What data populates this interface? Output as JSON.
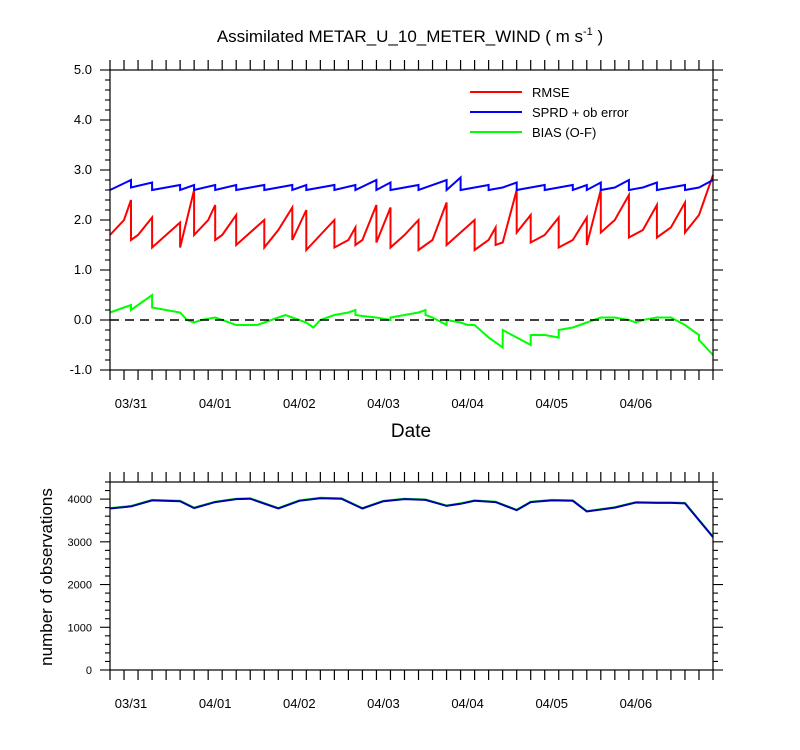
{
  "chart_data": [
    {
      "type": "line",
      "title": "Assimilated METAR_U_10_METER_WIND ( m s",
      "title_unit_superscript": "-1",
      "title_close": " )",
      "xlabel": "Date",
      "ylabel": "",
      "ylim": [
        -1.0,
        5.0
      ],
      "yticks": [
        "-1.0",
        "0.0",
        "1.0",
        "2.0",
        "3.0",
        "4.0",
        "5.0"
      ],
      "xlim": [
        0,
        43
      ],
      "xtick_labels": [
        {
          "x": 1.5,
          "label": "03/31"
        },
        {
          "x": 7.5,
          "label": "04/01"
        },
        {
          "x": 13.5,
          "label": "04/02"
        },
        {
          "x": 19.5,
          "label": "04/03"
        },
        {
          "x": 25.5,
          "label": "04/04"
        },
        {
          "x": 31.5,
          "label": "04/05"
        },
        {
          "x": 37.5,
          "label": "04/06"
        }
      ],
      "grid": false,
      "legend_position": "top-right",
      "reference_line": {
        "y": 0,
        "style": "dashed"
      },
      "series": [
        {
          "name": "RMSE",
          "color": "#ff0000",
          "points": [
            [
              0,
              1.7
            ],
            [
              1,
              2.0
            ],
            [
              1.5,
              2.4
            ],
            [
              1.5,
              1.6
            ],
            [
              2,
              1.7
            ],
            [
              3,
              2.05
            ],
            [
              3,
              1.45
            ],
            [
              4,
              1.7
            ],
            [
              5,
              1.95
            ],
            [
              5,
              1.45
            ],
            [
              6,
              2.6
            ],
            [
              6,
              1.7
            ],
            [
              7,
              2.0
            ],
            [
              7.5,
              2.3
            ],
            [
              7.5,
              1.6
            ],
            [
              8,
              1.7
            ],
            [
              9,
              2.1
            ],
            [
              9,
              1.5
            ],
            [
              10,
              1.75
            ],
            [
              11,
              2.0
            ],
            [
              11,
              1.45
            ],
            [
              12,
              1.8
            ],
            [
              13,
              2.25
            ],
            [
              13,
              1.6
            ],
            [
              14,
              2.2
            ],
            [
              14,
              1.4
            ],
            [
              15,
              1.7
            ],
            [
              16,
              2.0
            ],
            [
              16,
              1.45
            ],
            [
              17,
              1.6
            ],
            [
              17.5,
              1.85
            ],
            [
              17.5,
              1.5
            ],
            [
              18,
              1.6
            ],
            [
              19,
              2.3
            ],
            [
              19,
              1.55
            ],
            [
              20,
              2.25
            ],
            [
              20,
              1.45
            ],
            [
              21,
              1.7
            ],
            [
              22,
              2.0
            ],
            [
              22,
              1.4
            ],
            [
              23,
              1.6
            ],
            [
              24,
              2.35
            ],
            [
              24,
              1.5
            ],
            [
              25,
              1.75
            ],
            [
              26,
              2.0
            ],
            [
              26,
              1.4
            ],
            [
              27,
              1.6
            ],
            [
              27.5,
              1.85
            ],
            [
              27.5,
              1.5
            ],
            [
              28,
              1.55
            ],
            [
              29,
              2.6
            ],
            [
              29,
              1.75
            ],
            [
              30,
              2.1
            ],
            [
              30,
              1.55
            ],
            [
              31,
              1.7
            ],
            [
              32,
              2.05
            ],
            [
              32,
              1.45
            ],
            [
              33,
              1.6
            ],
            [
              34,
              2.05
            ],
            [
              34,
              1.5
            ],
            [
              35,
              2.6
            ],
            [
              35,
              1.75
            ],
            [
              36,
              2.0
            ],
            [
              37,
              2.5
            ],
            [
              37,
              1.65
            ],
            [
              38,
              1.8
            ],
            [
              39,
              2.3
            ],
            [
              39,
              1.65
            ],
            [
              40,
              1.85
            ],
            [
              41,
              2.35
            ],
            [
              41,
              1.75
            ],
            [
              42,
              2.1
            ],
            [
              43,
              2.9
            ]
          ]
        },
        {
          "name": "SPRD + ob error",
          "color": "#0000ff",
          "points": [
            [
              0,
              2.6
            ],
            [
              1.5,
              2.8
            ],
            [
              1.5,
              2.65
            ],
            [
              3,
              2.75
            ],
            [
              3,
              2.6
            ],
            [
              4,
              2.65
            ],
            [
              5,
              2.7
            ],
            [
              5,
              2.6
            ],
            [
              6,
              2.7
            ],
            [
              6,
              2.6
            ],
            [
              7.5,
              2.7
            ],
            [
              7.5,
              2.6
            ],
            [
              9,
              2.7
            ],
            [
              9,
              2.6
            ],
            [
              10,
              2.65
            ],
            [
              11,
              2.7
            ],
            [
              11,
              2.6
            ],
            [
              13,
              2.7
            ],
            [
              13,
              2.6
            ],
            [
              14,
              2.7
            ],
            [
              14,
              2.6
            ],
            [
              16,
              2.7
            ],
            [
              16,
              2.6
            ],
            [
              17.5,
              2.7
            ],
            [
              17.5,
              2.6
            ],
            [
              19,
              2.8
            ],
            [
              19,
              2.6
            ],
            [
              20,
              2.75
            ],
            [
              20,
              2.6
            ],
            [
              22,
              2.7
            ],
            [
              22,
              2.6
            ],
            [
              24,
              2.8
            ],
            [
              24,
              2.6
            ],
            [
              25,
              2.85
            ],
            [
              25,
              2.6
            ],
            [
              26,
              2.65
            ],
            [
              27,
              2.7
            ],
            [
              27,
              2.6
            ],
            [
              28,
              2.65
            ],
            [
              29,
              2.75
            ],
            [
              29,
              2.6
            ],
            [
              30,
              2.65
            ],
            [
              31,
              2.7
            ],
            [
              31,
              2.6
            ],
            [
              32,
              2.65
            ],
            [
              33,
              2.7
            ],
            [
              33,
              2.6
            ],
            [
              34,
              2.7
            ],
            [
              34,
              2.6
            ],
            [
              35,
              2.75
            ],
            [
              35,
              2.6
            ],
            [
              36,
              2.65
            ],
            [
              37,
              2.8
            ],
            [
              37,
              2.6
            ],
            [
              38,
              2.65
            ],
            [
              39,
              2.75
            ],
            [
              39,
              2.6
            ],
            [
              40,
              2.65
            ],
            [
              41,
              2.7
            ],
            [
              41,
              2.6
            ],
            [
              42,
              2.65
            ],
            [
              43,
              2.8
            ]
          ]
        },
        {
          "name": "BIAS (O-F)",
          "color": "#00ff00",
          "points": [
            [
              0,
              0.15
            ],
            [
              1,
              0.25
            ],
            [
              1.5,
              0.3
            ],
            [
              1.5,
              0.2
            ],
            [
              2,
              0.3
            ],
            [
              3,
              0.5
            ],
            [
              3,
              0.25
            ],
            [
              4,
              0.2
            ],
            [
              5,
              0.15
            ],
            [
              5.5,
              0.0
            ],
            [
              6,
              -0.05
            ],
            [
              6.5,
              0.0
            ],
            [
              7.5,
              0.05
            ],
            [
              8,
              0.0
            ],
            [
              9,
              -0.1
            ],
            [
              10,
              -0.1
            ],
            [
              10.5,
              -0.1
            ],
            [
              11,
              -0.05
            ],
            [
              12,
              0.05
            ],
            [
              12.5,
              0.1
            ],
            [
              13,
              0.05
            ],
            [
              14,
              -0.05
            ],
            [
              14.5,
              -0.15
            ],
            [
              15,
              0.0
            ],
            [
              16,
              0.1
            ],
            [
              17,
              0.15
            ],
            [
              17.5,
              0.2
            ],
            [
              17.5,
              0.1
            ],
            [
              18,
              0.08
            ],
            [
              19,
              0.05
            ],
            [
              20,
              0.0
            ],
            [
              20,
              0.05
            ],
            [
              21,
              0.1
            ],
            [
              22,
              0.15
            ],
            [
              22.5,
              0.2
            ],
            [
              22.5,
              0.1
            ],
            [
              23,
              0.05
            ],
            [
              24,
              -0.1
            ],
            [
              24,
              0.0
            ],
            [
              25,
              -0.05
            ],
            [
              25.5,
              -0.1
            ],
            [
              26,
              -0.1
            ],
            [
              27,
              -0.35
            ],
            [
              28,
              -0.55
            ],
            [
              28,
              -0.2
            ],
            [
              29,
              -0.35
            ],
            [
              30,
              -0.5
            ],
            [
              30,
              -0.3
            ],
            [
              31,
              -0.3
            ],
            [
              32,
              -0.35
            ],
            [
              32,
              -0.2
            ],
            [
              33,
              -0.15
            ],
            [
              34,
              -0.05
            ],
            [
              35,
              0.05
            ],
            [
              36,
              0.05
            ],
            [
              37,
              0.0
            ],
            [
              37.5,
              -0.05
            ],
            [
              38,
              0.0
            ],
            [
              39,
              0.05
            ],
            [
              40,
              0.05
            ],
            [
              41,
              -0.1
            ],
            [
              42,
              -0.3
            ],
            [
              42,
              -0.4
            ],
            [
              43,
              -0.7
            ]
          ]
        }
      ]
    },
    {
      "type": "line",
      "title": "",
      "xlabel": "",
      "ylabel": "number of observations",
      "ylim": [
        0,
        4400
      ],
      "yticks": [
        "0",
        "1000",
        "2000",
        "3000",
        "4000"
      ],
      "xlim": [
        0,
        43
      ],
      "xtick_labels": [
        {
          "x": 1.5,
          "label": "03/31"
        },
        {
          "x": 7.5,
          "label": "04/01"
        },
        {
          "x": 13.5,
          "label": "04/02"
        },
        {
          "x": 19.5,
          "label": "04/03"
        },
        {
          "x": 25.5,
          "label": "04/04"
        },
        {
          "x": 31.5,
          "label": "04/05"
        },
        {
          "x": 37.5,
          "label": "04/06"
        }
      ],
      "grid": false,
      "series": [
        {
          "color": "#00ff00",
          "points": [
            [
              0,
              3790
            ],
            [
              1.5,
              3840
            ],
            [
              3,
              3980
            ],
            [
              5,
              3960
            ],
            [
              6,
              3800
            ],
            [
              7.5,
              3940
            ],
            [
              9,
              4010
            ],
            [
              10,
              4020
            ],
            [
              12,
              3790
            ],
            [
              13.5,
              3970
            ],
            [
              15,
              4030
            ],
            [
              16.5,
              4020
            ],
            [
              18,
              3790
            ],
            [
              19.5,
              3960
            ],
            [
              21,
              4010
            ],
            [
              22.5,
              3990
            ],
            [
              24,
              3850
            ],
            [
              25,
              3900
            ],
            [
              26,
              3970
            ],
            [
              27.5,
              3940
            ],
            [
              29,
              3750
            ],
            [
              30,
              3940
            ],
            [
              31.5,
              3980
            ],
            [
              33,
              3970
            ],
            [
              34,
              3720
            ],
            [
              36,
              3810
            ],
            [
              37.5,
              3930
            ],
            [
              39,
              3920
            ],
            [
              40,
              3920
            ],
            [
              41,
              3910
            ],
            [
              43,
              3120
            ]
          ]
        },
        {
          "color": "#0000aa",
          "points": [
            [
              0,
              3780
            ],
            [
              1.5,
              3830
            ],
            [
              3,
              3970
            ],
            [
              5,
              3950
            ],
            [
              6,
              3790
            ],
            [
              7.5,
              3930
            ],
            [
              9,
              4000
            ],
            [
              10,
              4010
            ],
            [
              12,
              3780
            ],
            [
              13.5,
              3960
            ],
            [
              15,
              4020
            ],
            [
              16.5,
              4010
            ],
            [
              18,
              3780
            ],
            [
              19.5,
              3950
            ],
            [
              21,
              4000
            ],
            [
              22.5,
              3980
            ],
            [
              24,
              3840
            ],
            [
              25,
              3890
            ],
            [
              26,
              3960
            ],
            [
              27.5,
              3930
            ],
            [
              29,
              3740
            ],
            [
              30,
              3930
            ],
            [
              31.5,
              3970
            ],
            [
              33,
              3960
            ],
            [
              34,
              3710
            ],
            [
              36,
              3800
            ],
            [
              37.5,
              3920
            ],
            [
              39,
              3910
            ],
            [
              40,
              3910
            ],
            [
              41,
              3900
            ],
            [
              43,
              3110
            ]
          ]
        }
      ]
    }
  ]
}
